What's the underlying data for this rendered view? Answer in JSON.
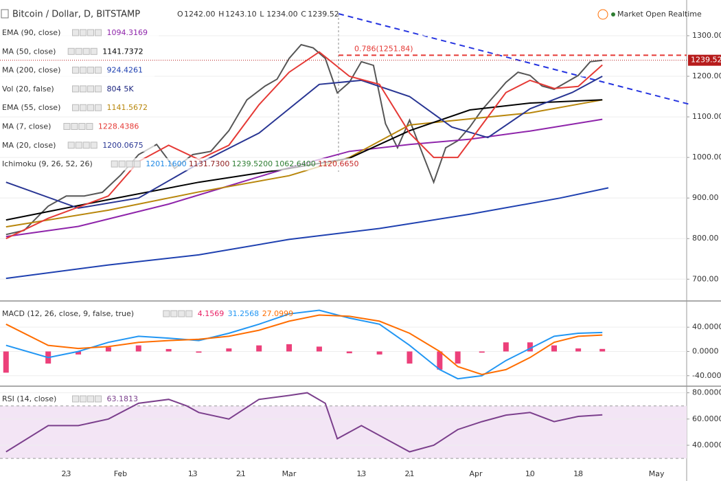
{
  "header": {
    "title": "Bitcoin / Dollar, D, BITSTAMP",
    "ohlc": [
      [
        "O",
        "1242.00"
      ],
      [
        "H",
        "1243.10"
      ],
      [
        "L",
        "1234.00"
      ],
      [
        "C",
        "1239.52"
      ]
    ],
    "status": "Market Open Realtime"
  },
  "chart_data": [
    {
      "type": "line",
      "ylim": [
        648,
        1388
      ],
      "yticks": [
        {
          "value": 1300,
          "label": "1300.00"
        },
        {
          "value": 1200,
          "label": "1200.00"
        },
        {
          "value": 1100,
          "label": "1100.00"
        },
        {
          "value": 1000,
          "label": "1000.00"
        },
        {
          "value": 900,
          "label": "900.00"
        },
        {
          "value": 800,
          "label": "800.00"
        },
        {
          "value": 700,
          "label": "700.00"
        }
      ],
      "last_price": {
        "value": 1239.52,
        "label": "1239.52"
      },
      "annotation": {
        "value": 1251.84,
        "label": "0.786(1251.84)"
      },
      "indicators": [
        {
          "name": "EMA (90, close)",
          "values": [
            "1094.3169"
          ],
          "colors": [
            "#8e24aa"
          ]
        },
        {
          "name": "MA (50, close)",
          "values": [
            "1141.7372"
          ],
          "colors": [
            "#000000"
          ]
        },
        {
          "name": "MA (200, close)",
          "values": [
            "924.4261"
          ],
          "colors": [
            "#1e40b0"
          ]
        },
        {
          "name": "Vol (20, false)",
          "values": [
            "804",
            "5K"
          ],
          "colors": [
            "#1a237e",
            "#1a237e"
          ]
        },
        {
          "name": "EMA (55, close)",
          "values": [
            "1141.5672"
          ],
          "colors": [
            "#b8860b"
          ]
        },
        {
          "name": "MA (7, close)",
          "values": [
            "1228.4386"
          ],
          "colors": [
            "#e53935"
          ]
        },
        {
          "name": "MA (20, close)",
          "values": [
            "1200.0675"
          ],
          "colors": [
            "#283593"
          ]
        },
        {
          "name": "Ichimoku (9, 26, 52, 26)",
          "values": [
            "1201.1600",
            "1131.7300",
            "1239.5200",
            "1062.6400",
            "1120.6650"
          ],
          "colors": [
            "#1e88e5",
            "#8d1c1c",
            "#2e7d32",
            "#2e7d32",
            "#c62828"
          ]
        }
      ],
      "series": [
        {
          "color": "#555555",
          "x": [
            -47,
            -44,
            -40,
            -37,
            -34,
            -31,
            -28,
            -25,
            -22,
            -19,
            -16,
            -13,
            -10,
            -7,
            -4,
            -2,
            0,
            2,
            4,
            6,
            8,
            10,
            12,
            14,
            16,
            18,
            20,
            22,
            24,
            26,
            28,
            30,
            32,
            34,
            36,
            38,
            40,
            42,
            44,
            46,
            48,
            50,
            52
          ],
          "values": [
            810,
            820,
            880,
            905,
            905,
            914,
            956,
            1007,
            1032,
            973,
            1007,
            1015,
            1066,
            1142,
            1176,
            1193,
            1244,
            1278,
            1270,
            1244,
            1159,
            1185,
            1236,
            1227,
            1083,
            1024,
            1092,
            1015,
            939,
            1024,
            1041,
            1075,
            1117,
            1151,
            1185,
            1210,
            1202,
            1176,
            1168,
            1185,
            1202,
            1236,
            1239.52
          ]
        },
        {
          "color": "#1e40b0",
          "x": [
            -47,
            -30,
            -15,
            0,
            15,
            30,
            45,
            53
          ],
          "values": [
            702,
            735,
            760,
            798,
            825,
            860,
            900,
            925
          ]
        },
        {
          "color": "#8e24aa",
          "x": [
            -47,
            -35,
            -20,
            -10,
            0,
            10,
            20,
            30,
            40,
            52
          ],
          "values": [
            805,
            830,
            885,
            930,
            975,
            1015,
            1032,
            1045,
            1065,
            1094
          ]
        },
        {
          "color": "#b8860b",
          "x": [
            -47,
            -30,
            -15,
            0,
            10,
            20,
            30,
            40,
            52
          ],
          "values": [
            829,
            870,
            915,
            955,
            1000,
            1080,
            1095,
            1110,
            1142
          ]
        },
        {
          "color": "#000000",
          "x": [
            -47,
            -30,
            -15,
            0,
            10,
            20,
            30,
            40,
            52
          ],
          "values": [
            846,
            896,
            939,
            973,
            998,
            1066,
            1117,
            1134,
            1142
          ]
        },
        {
          "color": "#283593",
          "x": [
            -47,
            -35,
            -25,
            -15,
            -5,
            5,
            12,
            20,
            27,
            33,
            40,
            47,
            52
          ],
          "values": [
            939,
            875,
            900,
            985,
            1060,
            1180,
            1190,
            1150,
            1075,
            1049,
            1120,
            1160,
            1200
          ]
        },
        {
          "color": "#e53935",
          "x": [
            -47,
            -40,
            -30,
            -25,
            -20,
            -15,
            -10,
            -5,
            0,
            5,
            10,
            15,
            20,
            24,
            28,
            32,
            36,
            40,
            44,
            48,
            52
          ],
          "values": [
            800,
            850,
            905,
            990,
            1030,
            995,
            1030,
            1130,
            1210,
            1260,
            1200,
            1180,
            1060,
            1000,
            1000,
            1080,
            1160,
            1190,
            1170,
            1175,
            1228
          ]
        }
      ]
    },
    {
      "type": "line",
      "ylim": [
        -55,
        81
      ],
      "yticks": [
        {
          "value": 40,
          "label": "40.0000"
        },
        {
          "value": 0,
          "label": "0.0000"
        },
        {
          "value": -40,
          "label": "-40.0000"
        }
      ],
      "legend": {
        "name": "MACD (12, 26, close, 9, false, true)",
        "values": [
          "4.1569",
          "31.2568",
          "27.0999"
        ]
      },
      "series": [
        {
          "type": "bar",
          "color": "#e91e63",
          "x": [
            -47,
            -40,
            -35,
            -30,
            -25,
            -20,
            -15,
            -10,
            -5,
            0,
            5,
            10,
            15,
            20,
            25,
            28,
            32,
            36,
            40,
            44,
            48,
            52
          ],
          "values": [
            -35,
            -20,
            -5,
            7,
            10,
            4,
            -2,
            5,
            10,
            12,
            8,
            -3,
            -5,
            -20,
            -30,
            -20,
            -2,
            15,
            15,
            10,
            5,
            4.1569
          ]
        },
        {
          "color": "#2196f3",
          "x": [
            -47,
            -40,
            -35,
            -30,
            -25,
            -20,
            -15,
            -10,
            -5,
            0,
            5,
            10,
            15,
            20,
            25,
            28,
            32,
            36,
            40,
            44,
            48,
            52
          ],
          "values": [
            10,
            -10,
            0,
            15,
            25,
            22,
            18,
            30,
            45,
            62,
            68,
            55,
            45,
            10,
            -30,
            -45,
            -40,
            -15,
            5,
            25,
            30,
            31.2568
          ]
        },
        {
          "color": "#ff6d00",
          "x": [
            -47,
            -40,
            -35,
            -30,
            -25,
            -20,
            -15,
            -10,
            -5,
            0,
            5,
            10,
            15,
            20,
            25,
            28,
            32,
            36,
            40,
            44,
            48,
            52
          ],
          "values": [
            45,
            10,
            5,
            8,
            15,
            18,
            20,
            25,
            35,
            50,
            60,
            58,
            50,
            30,
            0,
            -25,
            -38,
            -30,
            -10,
            15,
            25,
            27.0999
          ]
        }
      ]
    },
    {
      "type": "line",
      "ylim": [
        18,
        84
      ],
      "band": [
        30,
        70
      ],
      "yticks": [
        {
          "value": 80,
          "label": "80.0000"
        },
        {
          "value": 60,
          "label": "60.0000"
        },
        {
          "value": 40,
          "label": "40.0000"
        }
      ],
      "legend": {
        "name": "RSI (14, close)",
        "values": [
          "63.1813"
        ]
      },
      "xlim": [
        -48,
        66
      ],
      "xticks": [
        {
          "value": -37,
          "label": "23"
        },
        {
          "value": -28,
          "label": "Feb"
        },
        {
          "value": -16,
          "label": "13"
        },
        {
          "value": -8,
          "label": "21"
        },
        {
          "value": 0,
          "label": "Mar"
        },
        {
          "value": 12,
          "label": "13"
        },
        {
          "value": 20,
          "label": "21"
        },
        {
          "value": 31,
          "label": "Apr"
        },
        {
          "value": 40,
          "label": "10"
        },
        {
          "value": 48,
          "label": "18"
        },
        {
          "value": 61,
          "label": "May"
        }
      ],
      "series": [
        {
          "color": "#7b3f8c",
          "x": [
            -47,
            -40,
            -35,
            -30,
            -25,
            -20,
            -17,
            -15,
            -10,
            -5,
            0,
            3,
            6,
            8,
            12,
            16,
            20,
            24,
            28,
            32,
            36,
            40,
            44,
            48,
            52
          ],
          "values": [
            35,
            55,
            55,
            60,
            72,
            75,
            70,
            65,
            60,
            75,
            78,
            80,
            72,
            45,
            55,
            45,
            35,
            40,
            52,
            58,
            63,
            65,
            58,
            62,
            63.1813
          ]
        }
      ]
    }
  ]
}
